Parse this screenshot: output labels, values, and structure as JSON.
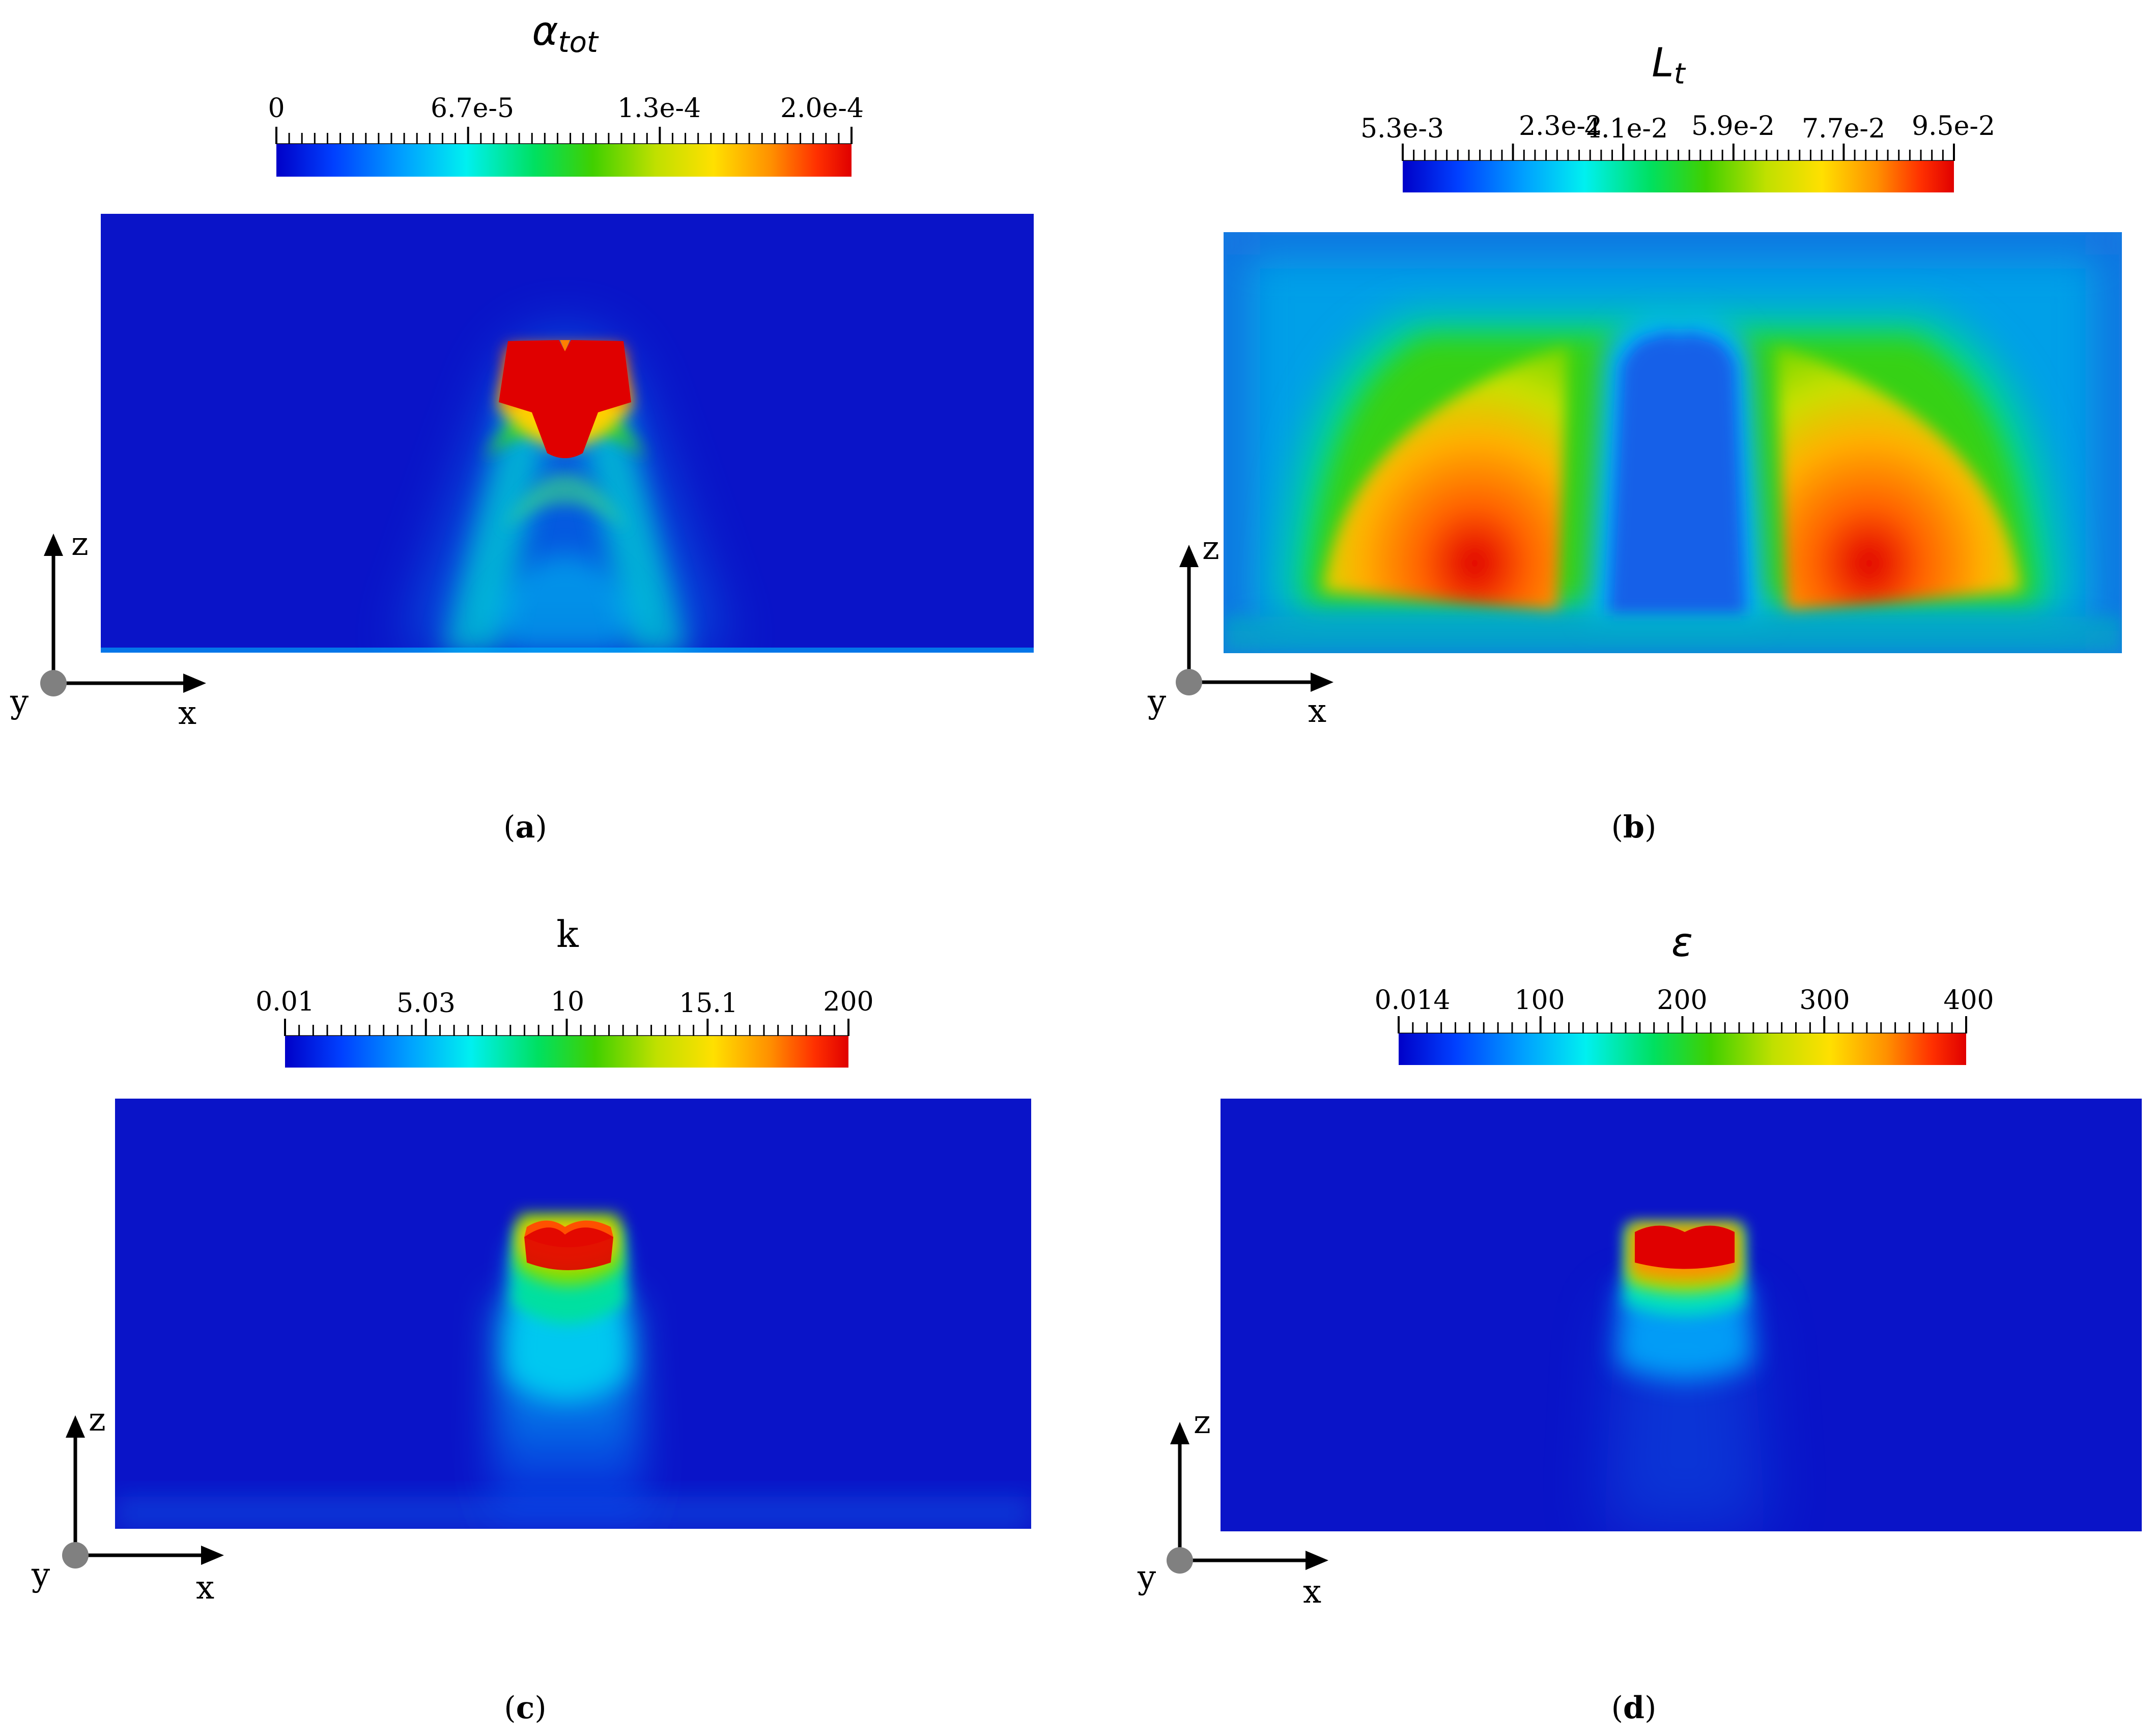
{
  "panels": [
    {
      "id": "a",
      "title": "α",
      "title_sub": "tot",
      "colorbar_labels": [
        "0",
        "6.7e-5",
        "1.3e-4",
        "2.0e-4"
      ],
      "caption_open": "(",
      "caption_letter": "a",
      "caption_close": ")",
      "axis_x": "x",
      "axis_y": "y",
      "axis_z": "z"
    },
    {
      "id": "b",
      "title": "L",
      "title_sub": "t",
      "colorbar_labels": [
        "5.3e-3",
        "2.3e-2",
        "4.1e-2",
        "5.9e-2",
        "7.7e-2",
        "9.5e-2"
      ],
      "caption_open": "(",
      "caption_letter": "b",
      "caption_close": ")",
      "axis_x": "x",
      "axis_y": "y",
      "axis_z": "z"
    },
    {
      "id": "c",
      "title": "k",
      "title_sub": "",
      "colorbar_labels": [
        "0.01",
        "5.03",
        "10",
        "15.1",
        "200"
      ],
      "caption_open": "(",
      "caption_letter": "c",
      "caption_close": ")",
      "axis_x": "x",
      "axis_y": "y",
      "axis_z": "z"
    },
    {
      "id": "d",
      "title": "ε",
      "title_sub": "",
      "colorbar_labels": [
        "0.014",
        "100",
        "200",
        "300",
        "400"
      ],
      "caption_open": "(",
      "caption_letter": "d",
      "caption_close": ")",
      "axis_x": "x",
      "axis_y": "y",
      "axis_z": "z"
    }
  ],
  "colormap": [
    "#0000c8",
    "#0040ff",
    "#00a0ff",
    "#00f0f0",
    "#00e060",
    "#40d000",
    "#c0e000",
    "#ffe000",
    "#ff9000",
    "#ff3000",
    "#e00000"
  ],
  "background_color": "#0a14c8"
}
